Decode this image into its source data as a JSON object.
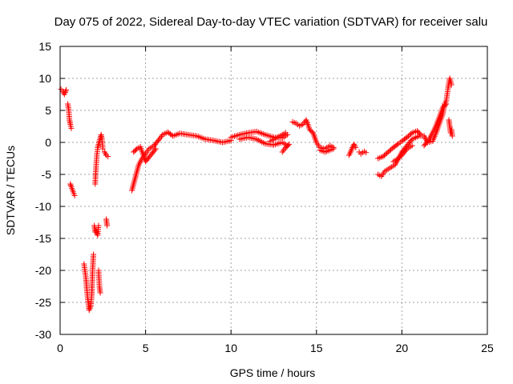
{
  "chart_data": {
    "type": "scatter",
    "title": "Day 075 of 2022, Sidereal Day-to-day VTEC variation (SDTVAR) for receiver salu",
    "xlabel": "GPS time / hours",
    "ylabel": "SDTVAR / TECUs",
    "xlim": [
      0,
      25
    ],
    "ylim": [
      -30,
      15
    ],
    "xticks": [
      0,
      5,
      10,
      15,
      20,
      25
    ],
    "yticks": [
      -30,
      -25,
      -20,
      -15,
      -10,
      -5,
      0,
      5,
      10,
      15
    ],
    "grid": true,
    "marker": "+",
    "colors": {
      "series": "#ff0000",
      "grid": "#a0a0a0",
      "axis": "#000000"
    },
    "series": [
      {
        "name": "SDTVAR",
        "segments": [
          [
            [
              0.05,
              8.3
            ],
            [
              0.15,
              8.0
            ],
            [
              0.25,
              7.5
            ],
            [
              0.3,
              7.8
            ],
            [
              0.35,
              8.2
            ]
          ],
          [
            [
              0.45,
              6.0
            ],
            [
              0.5,
              5.2
            ],
            [
              0.55,
              3.5
            ],
            [
              0.6,
              2.8
            ],
            [
              0.65,
              2.2
            ]
          ],
          [
            [
              0.6,
              -6.5
            ],
            [
              0.65,
              -6.9
            ],
            [
              0.8,
              -8.0
            ],
            [
              0.85,
              -8.3
            ]
          ],
          [
            [
              1.4,
              -19.0
            ],
            [
              1.5,
              -21.0
            ],
            [
              1.6,
              -24.0
            ],
            [
              1.7,
              -26.2
            ],
            [
              1.8,
              -25.5
            ],
            [
              1.85,
              -24.0
            ],
            [
              1.9,
              -20.0
            ],
            [
              1.95,
              -17.5
            ]
          ],
          [
            [
              2.0,
              -13.0
            ],
            [
              2.05,
              -14.0
            ],
            [
              2.1,
              -13.8
            ],
            [
              2.2,
              -14.5
            ],
            [
              2.25,
              -13.0
            ]
          ],
          [
            [
              2.25,
              -20.0
            ],
            [
              2.3,
              -22.5
            ],
            [
              2.35,
              -23.5
            ]
          ],
          [
            [
              2.05,
              -6.5
            ],
            [
              2.1,
              -4.0
            ],
            [
              2.15,
              -2.0
            ],
            [
              2.2,
              -0.8
            ],
            [
              2.3,
              0.2
            ],
            [
              2.4,
              1.2
            ],
            [
              2.45,
              0.5
            ],
            [
              2.5,
              -1.0
            ]
          ],
          [
            [
              2.6,
              -1.5
            ],
            [
              2.7,
              -2.0
            ],
            [
              2.8,
              -2.2
            ]
          ],
          [
            [
              2.7,
              -12.0
            ],
            [
              2.75,
              -13.0
            ]
          ],
          [
            [
              4.2,
              -7.5
            ],
            [
              4.3,
              -6.5
            ],
            [
              4.4,
              -5.5
            ],
            [
              4.5,
              -4.5
            ],
            [
              4.6,
              -3.5
            ],
            [
              4.8,
              -2.5
            ],
            [
              5.0,
              -1.8
            ],
            [
              5.2,
              -1.0
            ],
            [
              5.5,
              -0.5
            ],
            [
              5.8,
              0.5
            ],
            [
              6.0,
              1.2
            ],
            [
              6.3,
              1.6
            ],
            [
              6.6,
              1.0
            ],
            [
              7.0,
              1.4
            ],
            [
              7.5,
              1.2
            ],
            [
              8.0,
              1.0
            ],
            [
              8.5,
              0.5
            ],
            [
              9.0,
              0.3
            ],
            [
              9.5,
              0.0
            ],
            [
              10.0,
              0.3
            ]
          ],
          [
            [
              4.3,
              -1.5
            ],
            [
              4.5,
              -1.0
            ],
            [
              4.7,
              -0.7
            ],
            [
              5.0,
              -3.0
            ],
            [
              5.3,
              -2.0
            ],
            [
              5.6,
              -1.0
            ]
          ],
          [
            [
              10.0,
              0.8
            ],
            [
              10.5,
              1.2
            ],
            [
              11.0,
              1.5
            ],
            [
              11.5,
              1.7
            ],
            [
              12.0,
              1.2
            ],
            [
              12.5,
              0.8
            ],
            [
              13.0,
              0.7
            ],
            [
              13.3,
              1.2
            ]
          ],
          [
            [
              10.5,
              0.5
            ],
            [
              11.0,
              0.8
            ],
            [
              11.5,
              0.5
            ],
            [
              12.0,
              -0.2
            ],
            [
              12.5,
              -0.4
            ],
            [
              13.0,
              0.0
            ],
            [
              13.3,
              -0.5
            ]
          ],
          [
            [
              12.3,
              0.2
            ],
            [
              12.8,
              0.9
            ],
            [
              13.2,
              1.5
            ]
          ],
          [
            [
              13.0,
              -1.5
            ],
            [
              13.2,
              -0.8
            ],
            [
              13.4,
              -0.3
            ]
          ],
          [
            [
              13.6,
              3.2
            ],
            [
              13.8,
              3.0
            ],
            [
              14.0,
              2.6
            ],
            [
              14.2,
              2.8
            ],
            [
              14.4,
              3.5
            ],
            [
              14.5,
              2.8
            ],
            [
              14.6,
              2.0
            ],
            [
              14.8,
              1.5
            ],
            [
              15.0,
              0.0
            ],
            [
              15.2,
              -0.8
            ],
            [
              15.5,
              -1.0
            ],
            [
              15.8,
              -0.5
            ],
            [
              16.0,
              -0.8
            ]
          ],
          [
            [
              15.2,
              -1.2
            ],
            [
              15.5,
              -1.5
            ],
            [
              15.8,
              -1.2
            ],
            [
              16.0,
              -1.0
            ]
          ],
          [
            [
              16.9,
              -2.0
            ],
            [
              17.0,
              -1.5
            ],
            [
              17.1,
              -0.8
            ],
            [
              17.2,
              -0.3
            ],
            [
              17.3,
              -0.8
            ]
          ],
          [
            [
              17.5,
              -1.5
            ],
            [
              17.6,
              -1.8
            ],
            [
              17.8,
              -1.4
            ],
            [
              17.9,
              -1.6
            ]
          ],
          [
            [
              18.6,
              -5.0
            ],
            [
              18.8,
              -5.3
            ],
            [
              19.0,
              -4.5
            ],
            [
              19.3,
              -4.0
            ],
            [
              19.6,
              -3.5
            ],
            [
              20.0,
              -1.5
            ],
            [
              20.3,
              -0.5
            ],
            [
              20.6,
              0.5
            ],
            [
              21.0,
              1.0
            ],
            [
              21.3,
              1.0
            ],
            [
              21.5,
              0.0
            ],
            [
              21.8,
              0.2
            ],
            [
              22.0,
              1.5
            ],
            [
              22.2,
              3.0
            ],
            [
              22.4,
              4.5
            ],
            [
              22.5,
              6.0
            ],
            [
              22.6,
              6.5
            ],
            [
              22.7,
              8.5
            ],
            [
              22.8,
              10.0
            ],
            [
              22.9,
              9.0
            ]
          ],
          [
            [
              18.6,
              -2.5
            ],
            [
              18.9,
              -2.2
            ],
            [
              19.2,
              -1.5
            ],
            [
              19.5,
              -0.8
            ],
            [
              19.8,
              -0.2
            ],
            [
              20.0,
              0.2
            ],
            [
              20.3,
              0.8
            ],
            [
              20.6,
              1.5
            ],
            [
              20.9,
              1.8
            ],
            [
              21.1,
              1.2
            ]
          ],
          [
            [
              19.5,
              -3.0
            ],
            [
              19.8,
              -2.5
            ],
            [
              20.0,
              -2.0
            ],
            [
              20.3,
              -1.0
            ],
            [
              20.6,
              -0.5
            ]
          ],
          [
            [
              21.3,
              -0.5
            ],
            [
              21.6,
              0.5
            ],
            [
              21.9,
              2.0
            ],
            [
              22.2,
              4.0
            ],
            [
              22.4,
              5.5
            ],
            [
              22.6,
              6.0
            ]
          ],
          [
            [
              22.75,
              3.5
            ],
            [
              22.8,
              2.5
            ],
            [
              22.85,
              1.5
            ],
            [
              22.9,
              2.0
            ],
            [
              22.95,
              1.0
            ]
          ]
        ]
      }
    ]
  }
}
